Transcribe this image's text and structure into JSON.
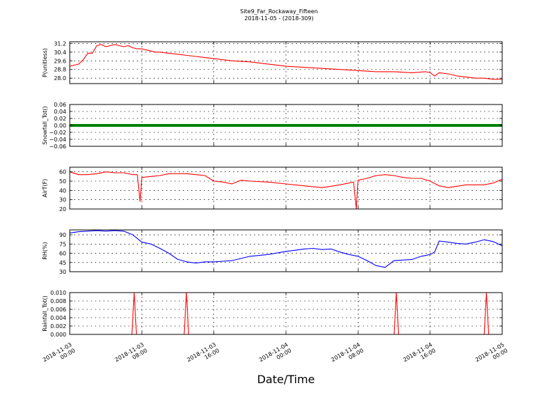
{
  "chart_data": {
    "type": "line",
    "title": "Site9_Far_Rockaway_Fifteen",
    "subtitle": "2018-11-05 - (2018-309)",
    "xlabel": "Date/Time",
    "x_ticks": [
      [
        "2018-11-03",
        "00:00"
      ],
      [
        "2018-11-03",
        "08:00"
      ],
      [
        "2018-11-03",
        "16:00"
      ],
      [
        "2018-11-04",
        "00:00"
      ],
      [
        "2018-11-04",
        "08:00"
      ],
      [
        "2018-11-04",
        "16:00"
      ],
      [
        "2018-11-05",
        "00:00"
      ]
    ],
    "x_hours_range": [
      0,
      48
    ],
    "grid": true,
    "panels": [
      {
        "ylabel": "P(unitless)",
        "color": "#ff0000",
        "ylim": [
          27.5,
          31.35
        ],
        "yticks": [
          "28.0",
          "28.8",
          "29.6",
          "30.4",
          "31.2"
        ],
        "ytick_values": [
          28.0,
          28.8,
          29.6,
          30.4,
          31.2
        ],
        "x": [
          0,
          0.5,
          1.0,
          1.5,
          2.0,
          2.5,
          3.0,
          3.5,
          4.0,
          4.5,
          5.0,
          5.5,
          6.0,
          6.5,
          7.0,
          7.5,
          8.0,
          8.5,
          9.0,
          9.5,
          10.0,
          11.0,
          12.0,
          13.0,
          14.0,
          15.0,
          16.0,
          17.0,
          18.0,
          20.0,
          22.0,
          24.0,
          26.0,
          28.0,
          30.0,
          32.0,
          34.0,
          36.0,
          38.0,
          39.5,
          40.0,
          40.5,
          41.0,
          42.0,
          43.0,
          44.0,
          45.0,
          46.0,
          47.0,
          48.0
        ],
        "values": [
          29.1,
          29.2,
          29.3,
          29.7,
          30.3,
          30.3,
          31.0,
          31.1,
          30.9,
          31.0,
          31.1,
          31.0,
          30.9,
          31.0,
          30.8,
          30.7,
          30.7,
          30.6,
          30.5,
          30.4,
          30.4,
          30.3,
          30.2,
          30.1,
          30.0,
          29.9,
          29.8,
          29.7,
          29.6,
          29.5,
          29.3,
          29.1,
          29.0,
          28.9,
          28.8,
          28.7,
          28.6,
          28.6,
          28.5,
          28.6,
          28.5,
          28.2,
          28.5,
          28.4,
          28.2,
          28.1,
          28.0,
          28.0,
          27.9,
          27.9
        ]
      },
      {
        "ylabel": "Snowfall_Tot()",
        "color": "#008000",
        "ylim": [
          -0.06,
          0.06
        ],
        "yticks": [
          "−0.06",
          "−0.04",
          "−0.02",
          "0.00",
          "0.02",
          "0.04",
          "0.06"
        ],
        "ytick_values": [
          -0.06,
          -0.04,
          -0.02,
          0.0,
          0.02,
          0.04,
          0.06
        ],
        "x": [
          0,
          48
        ],
        "values": [
          0.0,
          0.0
        ]
      },
      {
        "ylabel": "AirT(F)",
        "color": "#ff0000",
        "ylim": [
          20,
          65
        ],
        "yticks": [
          "20",
          "30",
          "40",
          "50",
          "60"
        ],
        "ytick_values": [
          20,
          30,
          40,
          50,
          60
        ],
        "x": [
          0,
          1.0,
          2.0,
          3.0,
          4.0,
          5.0,
          6.0,
          7.0,
          7.5,
          7.8,
          8.0,
          9.0,
          10.0,
          11.0,
          12.0,
          13.0,
          14.0,
          15.0,
          16.0,
          17.0,
          18.0,
          19.0,
          20.0,
          22.0,
          24.0,
          26.0,
          28.0,
          30.0,
          31.5,
          31.8,
          32.0,
          33.0,
          34.0,
          35.0,
          36.0,
          37.0,
          38.0,
          39.0,
          40.0,
          41.0,
          42.0,
          44.0,
          46.0,
          47.0,
          48.0
        ],
        "values": [
          60,
          57,
          57,
          58,
          60,
          59,
          59,
          57,
          57,
          28,
          54,
          55,
          56,
          58,
          58,
          58,
          57,
          56,
          50,
          49,
          47,
          51,
          50,
          49,
          47,
          45,
          43,
          46,
          49,
          20,
          51,
          53,
          56,
          57,
          56,
          54,
          53,
          53,
          50,
          45,
          43,
          46,
          46,
          48,
          52
        ]
      },
      {
        "ylabel": "RH(%)",
        "color": "#0000ff",
        "ylim": [
          30,
          98
        ],
        "yticks": [
          "30",
          "45",
          "60",
          "75",
          "90"
        ],
        "ytick_values": [
          30,
          45,
          60,
          75,
          90
        ],
        "x": [
          0,
          1.0,
          2.0,
          3.0,
          4.0,
          5.0,
          6.0,
          7.0,
          8.0,
          9.0,
          10.0,
          11.0,
          12.0,
          13.0,
          14.0,
          15.0,
          16.0,
          17.0,
          18.0,
          20.0,
          22.0,
          24.0,
          26.0,
          27.0,
          28.0,
          29.0,
          30.0,
          31.0,
          32.0,
          33.0,
          34.0,
          35.0,
          36.0,
          38.0,
          39.0,
          40.0,
          40.5,
          41.0,
          42.0,
          43.0,
          44.0,
          45.0,
          46.0,
          47.0,
          48.0
        ],
        "values": [
          93,
          95,
          96,
          97,
          96,
          97,
          96,
          90,
          78,
          75,
          68,
          60,
          50,
          46,
          44,
          46,
          46,
          47,
          48,
          55,
          58,
          63,
          67,
          68,
          66,
          67,
          62,
          58,
          55,
          48,
          40,
          37,
          48,
          50,
          55,
          58,
          62,
          80,
          78,
          76,
          75,
          78,
          82,
          79,
          72
        ]
      },
      {
        "ylabel": "Rainfall_Tot()",
        "color": "#ff0000",
        "ylim": [
          0.0,
          0.01
        ],
        "yticks": [
          "0.000",
          "0.002",
          "0.004",
          "0.006",
          "0.008",
          "0.010"
        ],
        "ytick_values": [
          0.0,
          0.002,
          0.004,
          0.006,
          0.008,
          0.01
        ],
        "x": [
          0,
          6.9,
          7.15,
          7.4,
          12.7,
          12.95,
          13.2,
          36.0,
          36.25,
          36.5,
          46.0,
          46.25,
          46.5,
          48.0
        ],
        "values": [
          0,
          0,
          0.01,
          0,
          0,
          0.01,
          0,
          0,
          0.01,
          0,
          0,
          0.01,
          0,
          0
        ]
      }
    ]
  }
}
